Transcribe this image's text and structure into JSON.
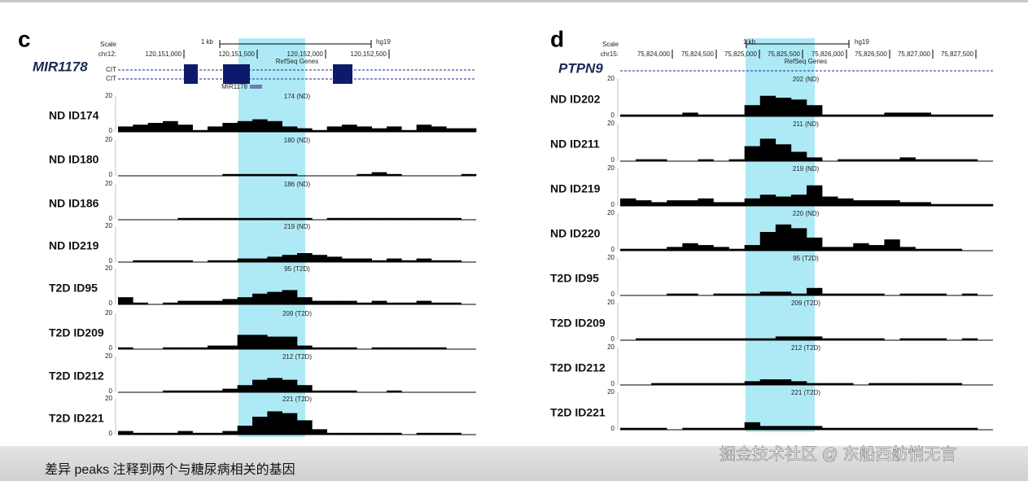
{
  "panels": [
    {
      "letter": "c",
      "gene": "MIR1178",
      "scale_label": "Scale",
      "chrom": "chr12:",
      "ruler_label": "1 kb",
      "assembly": "hg19",
      "coordinates": [
        "120,151,000",
        "120,151,500",
        "120,152,000",
        "120,152,500"
      ],
      "refseq": "RefSeq Genes",
      "transcripts": [
        "CIT",
        "CIT"
      ],
      "mirna": "MIR1178",
      "ylim": [
        0,
        20
      ],
      "tracks": [
        {
          "label": "ND ID174",
          "title": "174 (ND)",
          "values": [
            3,
            4,
            5,
            6,
            4,
            1,
            3,
            5,
            6,
            7,
            6,
            3,
            2,
            1,
            3,
            4,
            3,
            2,
            3,
            1,
            4,
            3,
            2,
            2
          ]
        },
        {
          "label": "ND ID180",
          "title": "180 (ND)",
          "values": [
            0,
            0,
            0,
            0,
            0,
            0,
            0,
            1,
            1,
            1,
            1,
            1,
            0,
            0,
            0,
            0,
            1,
            2,
            1,
            0,
            0,
            0,
            0,
            1
          ]
        },
        {
          "label": "ND ID186",
          "title": "186 (ND)",
          "values": [
            0,
            0,
            0,
            0,
            1,
            1,
            1,
            1,
            1,
            1,
            1,
            1,
            1,
            0,
            1,
            1,
            1,
            1,
            1,
            1,
            1,
            1,
            1,
            0
          ]
        },
        {
          "label": "ND ID219",
          "title": "219 (ND)",
          "values": [
            0,
            1,
            1,
            1,
            1,
            0,
            1,
            1,
            2,
            2,
            3,
            4,
            5,
            4,
            3,
            2,
            2,
            1,
            2,
            1,
            2,
            1,
            1,
            0
          ]
        },
        {
          "label": "T2D ID95",
          "title": "95 (T2D)",
          "values": [
            4,
            1,
            0,
            1,
            2,
            2,
            2,
            3,
            4,
            6,
            7,
            8,
            4,
            2,
            2,
            2,
            1,
            2,
            1,
            1,
            2,
            1,
            1,
            0
          ]
        },
        {
          "label": "T2D ID209",
          "title": "209 (T2D)",
          "values": [
            1,
            0,
            0,
            1,
            1,
            1,
            2,
            2,
            8,
            8,
            7,
            7,
            2,
            1,
            1,
            1,
            0,
            1,
            1,
            1,
            1,
            1,
            0,
            0
          ]
        },
        {
          "label": "T2D ID212",
          "title": "212 (T2D)",
          "values": [
            0,
            0,
            0,
            1,
            1,
            1,
            1,
            2,
            4,
            7,
            8,
            7,
            4,
            1,
            1,
            1,
            0,
            0,
            1,
            0,
            0,
            0,
            0,
            0
          ]
        },
        {
          "label": "T2D ID221",
          "title": "221 (T2D)",
          "values": [
            2,
            1,
            1,
            1,
            2,
            1,
            1,
            2,
            5,
            10,
            13,
            12,
            8,
            3,
            1,
            1,
            1,
            1,
            1,
            0,
            1,
            1,
            1,
            0
          ]
        }
      ]
    },
    {
      "letter": "d",
      "gene": "PTPN9",
      "scale_label": "Scale",
      "chrom": "chr15:",
      "ruler_label": "1 kb",
      "assembly": "hg19",
      "coordinates": [
        "75,824,000",
        "75,824,500",
        "75,825,000",
        "75,825,500",
        "75,826,000",
        "75,826,500",
        "75,827,000",
        "75,827,500"
      ],
      "refseq": "RefSeq Genes",
      "ylim": [
        0,
        20
      ],
      "tracks": [
        {
          "label": "ND ID202",
          "title": "202 (ND)",
          "values": [
            1,
            1,
            1,
            1,
            2,
            1,
            1,
            1,
            6,
            11,
            10,
            9,
            6,
            1,
            1,
            1,
            1,
            2,
            2,
            2,
            1,
            1,
            1,
            1
          ]
        },
        {
          "label": "ND ID211",
          "title": "211 (ND)",
          "values": [
            0,
            1,
            1,
            0,
            0,
            1,
            0,
            1,
            8,
            12,
            9,
            5,
            2,
            0,
            1,
            1,
            1,
            1,
            2,
            1,
            1,
            1,
            1,
            0
          ]
        },
        {
          "label": "ND ID219",
          "title": "219 (ND)",
          "values": [
            4,
            3,
            2,
            3,
            3,
            4,
            2,
            2,
            4,
            6,
            5,
            6,
            11,
            5,
            4,
            3,
            3,
            3,
            2,
            2,
            1,
            1,
            1,
            1
          ]
        },
        {
          "label": "ND ID220",
          "title": "220 (ND)",
          "values": [
            1,
            1,
            1,
            2,
            4,
            3,
            2,
            1,
            3,
            10,
            14,
            12,
            7,
            2,
            2,
            4,
            3,
            6,
            2,
            1,
            1,
            1,
            0,
            0
          ]
        },
        {
          "label": "T2D ID95",
          "title": "95 (T2D)",
          "values": [
            0,
            0,
            0,
            1,
            1,
            0,
            1,
            1,
            1,
            2,
            2,
            1,
            4,
            1,
            1,
            1,
            1,
            0,
            1,
            1,
            1,
            0,
            1,
            0
          ]
        },
        {
          "label": "T2D ID209",
          "title": "209 (T2D)",
          "values": [
            0,
            1,
            1,
            1,
            1,
            1,
            1,
            1,
            1,
            1,
            2,
            2,
            2,
            1,
            1,
            1,
            1,
            0,
            1,
            1,
            1,
            0,
            1,
            0
          ]
        },
        {
          "label": "T2D ID212",
          "title": "212 (T2D)",
          "values": [
            0,
            0,
            1,
            1,
            1,
            1,
            1,
            1,
            2,
            3,
            3,
            2,
            1,
            1,
            1,
            0,
            1,
            1,
            1,
            1,
            1,
            1,
            0,
            0
          ]
        },
        {
          "label": "T2D ID221",
          "title": "221 (T2D)",
          "values": [
            1,
            1,
            1,
            0,
            1,
            1,
            1,
            1,
            4,
            2,
            2,
            2,
            2,
            1,
            1,
            1,
            1,
            1,
            1,
            1,
            1,
            1,
            1,
            0
          ]
        }
      ]
    }
  ],
  "caption": "差异 peaks 注释到两个与糖尿病相关的基因",
  "watermark": "掘金技术社区 @ 东船西舫悄无言"
}
